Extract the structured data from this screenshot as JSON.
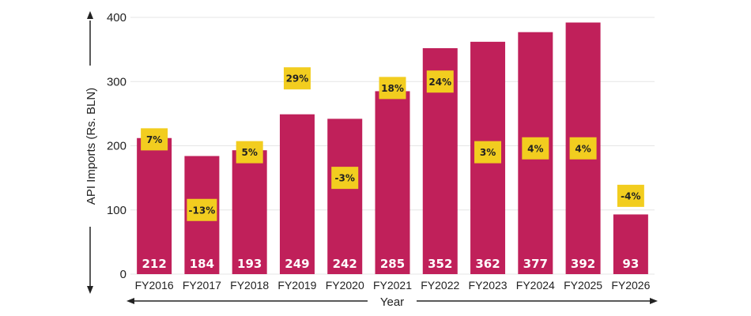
{
  "chart_data": {
    "type": "bar",
    "title": "",
    "xlabel": "Year",
    "ylabel": "API Imports (Rs. BLN)",
    "ylim": [
      0,
      400
    ],
    "yticks": [
      0,
      100,
      200,
      300,
      400
    ],
    "grid": true,
    "categories": [
      "FY2016",
      "FY2017",
      "FY2018",
      "FY2019",
      "FY2020",
      "FY2021",
      "FY2022",
      "FY2023",
      "FY2024",
      "FY2025",
      "FY2026"
    ],
    "values": [
      212,
      184,
      193,
      249,
      242,
      285,
      352,
      362,
      377,
      392,
      93
    ],
    "value_labels": [
      "212",
      "184",
      "193",
      "249",
      "242",
      "285",
      "352",
      "362",
      "377",
      "392",
      "93"
    ],
    "growth_labels": [
      "7%",
      "-13%",
      "5%",
      "29%",
      "-3%",
      "18%",
      "24%",
      "3%",
      "4%",
      "4%",
      "-4%"
    ],
    "growth_label_y": [
      210,
      100,
      190,
      305,
      150,
      290,
      300,
      190,
      196,
      196,
      122
    ],
    "colors": {
      "bar": "#c0205a",
      "growth_badge": "#f2cd1f",
      "grid": "#e6e6e6",
      "axis_text": "#222222"
    }
  }
}
